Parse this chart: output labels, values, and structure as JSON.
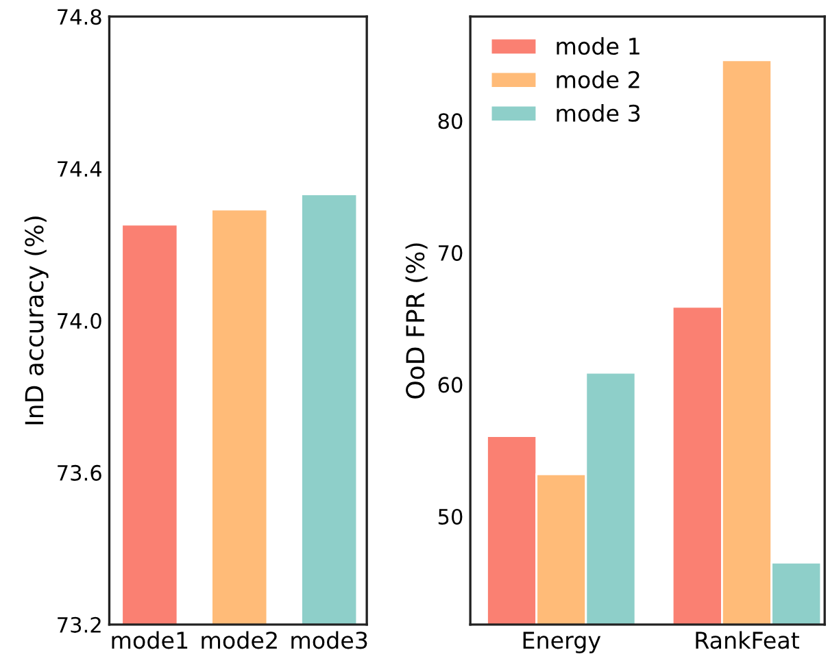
{
  "chart_data": [
    {
      "type": "bar",
      "ylabel": "InD accuracy (%)",
      "categories": [
        "mode1",
        "mode2",
        "mode3"
      ],
      "values": [
        74.25,
        74.29,
        74.33
      ],
      "colors": [
        "#fa8072",
        "#ffbb78",
        "#8ecfc9"
      ],
      "ylim": [
        73.2,
        74.8
      ],
      "yticks": [
        73.2,
        73.6,
        {
          "value": 74,
          "label": "74.0"
        },
        74.4,
        74.8
      ],
      "grid": false,
      "legend": false
    },
    {
      "type": "bar",
      "ylabel": "OoD FPR (%)",
      "categories": [
        "Energy",
        "RankFeat"
      ],
      "series": [
        {
          "name": "mode 1",
          "color": "#fa8072",
          "values": [
            56.1,
            65.9
          ]
        },
        {
          "name": "mode 2",
          "color": "#ffbb78",
          "values": [
            53.2,
            84.6
          ]
        },
        {
          "name": "mode 3",
          "color": "#8ecfc9",
          "values": [
            60.9,
            46.5
          ]
        }
      ],
      "ylim": [
        41.8,
        87.9
      ],
      "yticks": [
        50,
        60,
        70,
        80
      ],
      "grid": false,
      "legend": "top left"
    }
  ]
}
